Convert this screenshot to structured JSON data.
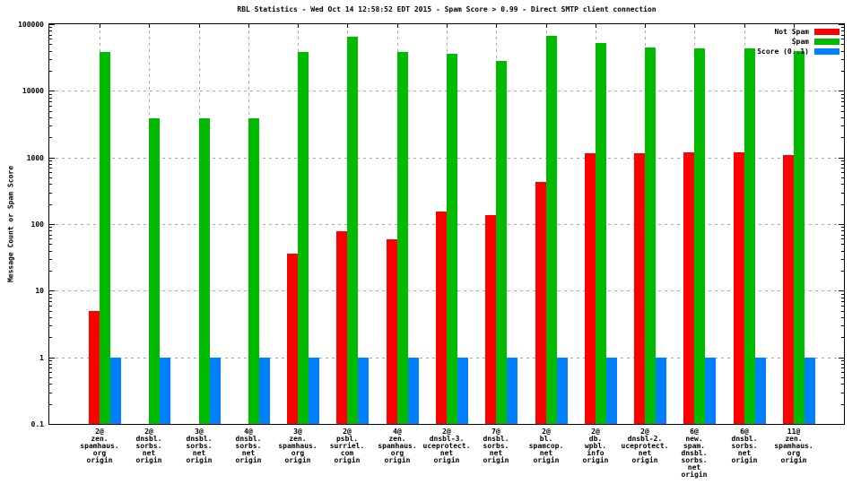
{
  "chart_data": {
    "type": "bar",
    "title": "RBL Statistics - Wed Oct 14 12:58:52 EDT 2015 - Spam Score > 0.99 - Direct SMTP client connection",
    "xlabel": "",
    "ylabel": "Message Count or Spam Score",
    "y_scale": "log",
    "ylim": [
      0.1,
      100000
    ],
    "y_ticks": [
      "0.1",
      "1",
      "10",
      "100",
      "1000",
      "10000",
      "100000"
    ],
    "grid": true,
    "legend_position": "top-right-inside",
    "categories": [
      [
        "2@",
        "zen.",
        "spamhaus.",
        "org",
        "origin"
      ],
      [
        "2@",
        "dnsbl.",
        "sorbs.",
        "net",
        "origin"
      ],
      [
        "3@",
        "dnsbl.",
        "sorbs.",
        "net",
        "origin"
      ],
      [
        "4@",
        "dnsbl.",
        "sorbs.",
        "net",
        "origin"
      ],
      [
        "3@",
        "zen.",
        "spamhaus.",
        "org",
        "origin"
      ],
      [
        "2@",
        "psbl.",
        "surriel.",
        "com",
        "origin"
      ],
      [
        "4@",
        "zen.",
        "spamhaus.",
        "org",
        "origin"
      ],
      [
        "2@",
        "dnsbl-3.",
        "uceprotect.",
        "net",
        "origin"
      ],
      [
        "7@",
        "dnsbl.",
        "sorbs.",
        "net",
        "origin"
      ],
      [
        "2@",
        "bl.",
        "spamcop.",
        "net",
        "origin"
      ],
      [
        "2@",
        "db.",
        "wpbl.",
        "info",
        "origin"
      ],
      [
        "2@",
        "dnsbl-2.",
        "uceprotect.",
        "net",
        "origin"
      ],
      [
        "6@",
        "new.",
        "spam.",
        "dnsbl.",
        "sorbs.",
        "net",
        "origin"
      ],
      [
        "6@",
        "dnsbl.",
        "sorbs.",
        "net",
        "origin"
      ],
      [
        "11@",
        "zen.",
        "spamhaus.",
        "org",
        "origin"
      ]
    ],
    "series": [
      {
        "name": "Not Spam",
        "color": "#ff0000",
        "values": [
          5,
          0,
          0,
          0,
          36,
          78,
          59,
          155,
          135,
          430,
          1150,
          1150,
          1190,
          1190,
          1080
        ]
      },
      {
        "name": "Spam",
        "color": "#00bb00",
        "values": [
          38000,
          3900,
          3900,
          3900,
          38000,
          65000,
          38000,
          36000,
          28000,
          66000,
          52000,
          45000,
          43000,
          43000,
          40000
        ]
      },
      {
        "name": "Score (0..1)",
        "color": "#0080ff",
        "values": [
          1,
          1,
          1,
          1,
          1,
          1,
          1,
          1,
          1,
          1,
          1,
          1,
          1,
          1,
          1
        ]
      }
    ]
  },
  "colors": {
    "background": "#ffffff",
    "axis": "#000000",
    "gridline": "#a8a8a8",
    "text": "#000000",
    "not_spam": "#ff0000",
    "spam": "#00bb00",
    "score": "#0080ff"
  }
}
